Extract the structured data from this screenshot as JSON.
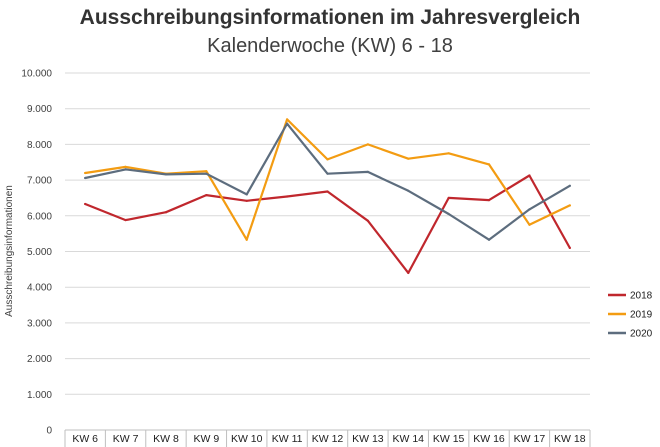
{
  "chart_data": {
    "type": "line",
    "title": "Ausschreibungsinformationen im Jahresvergleich",
    "subtitle": "Kalenderwoche (KW) 6 - 18",
    "ylabel": "Ausschreibungsinformationen",
    "xlabel": "",
    "ylim": [
      0,
      10000
    ],
    "yticks": [
      0,
      1000,
      2000,
      3000,
      4000,
      5000,
      6000,
      7000,
      8000,
      9000,
      10000
    ],
    "ytick_labels": [
      "0",
      "1.000",
      "2.000",
      "3.000",
      "4.000",
      "5.000",
      "6.000",
      "7.000",
      "8.000",
      "9.000",
      "10.000"
    ],
    "categories": [
      "KW 6",
      "KW 7",
      "KW 8",
      "KW 9",
      "KW 10",
      "KW 11",
      "KW 12",
      "KW 13",
      "KW 14",
      "KW 15",
      "KW 16",
      "KW 17",
      "KW 18"
    ],
    "grid": true,
    "legend_position": "right",
    "series": [
      {
        "name": "2018",
        "color": "#c0272d",
        "values": [
          6330,
          5880,
          6100,
          6580,
          6420,
          6540,
          6680,
          5860,
          4400,
          6500,
          6440,
          7130,
          5100
        ]
      },
      {
        "name": "2019",
        "color": "#f39c12",
        "values": [
          7200,
          7370,
          7180,
          7250,
          5330,
          8700,
          7580,
          8000,
          7600,
          7750,
          7440,
          5750,
          6290
        ]
      },
      {
        "name": "2020",
        "color": "#5d6d7e",
        "values": [
          7060,
          7300,
          7160,
          7180,
          6600,
          8580,
          7180,
          7230,
          6700,
          6050,
          5330,
          6180,
          6840
        ]
      }
    ]
  }
}
